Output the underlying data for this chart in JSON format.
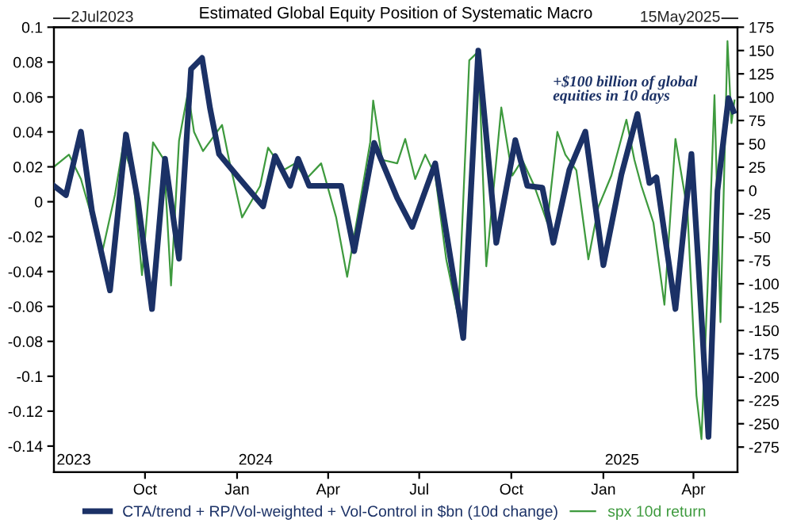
{
  "chart_data": {
    "type": "line",
    "title": "Estimated Global Equity Position of Systematic Macro",
    "xlim": [
      "2023-07-02",
      "2025-05-15"
    ],
    "xticks": [
      {
        "value": "2023-10-01",
        "label": "Oct"
      },
      {
        "value": "2024-01-01",
        "label": "Jan"
      },
      {
        "value": "2024-04-01",
        "label": "Apr"
      },
      {
        "value": "2024-07-01",
        "label": "Jul"
      },
      {
        "value": "2024-10-01",
        "label": "Oct"
      },
      {
        "value": "2025-01-01",
        "label": "Jan"
      },
      {
        "value": "2025-04-01",
        "label": "Apr"
      }
    ],
    "ylim": [
      -0.155,
      0.1
    ],
    "yticks": [
      0.1,
      0.08,
      0.06,
      0.04,
      0.02,
      0,
      -0.02,
      -0.04,
      -0.06,
      -0.08,
      -0.1,
      -0.12,
      -0.14
    ],
    "y2lim": [
      -302,
      175
    ],
    "y2ticks": [
      175,
      150,
      125,
      100,
      75,
      50,
      25,
      0,
      -25,
      -50,
      -75,
      -100,
      -125,
      -150,
      -175,
      -200,
      -225,
      -250,
      -275
    ],
    "legend": "bottom",
    "grid": false,
    "annotations": [
      "2Jul2023",
      "15May2025",
      "+$100 billion of global equities in 10 days",
      "2023",
      "2024",
      "2025"
    ],
    "series": [
      {
        "name": "spx 10d return",
        "color": "#3e9a3e",
        "x": [
          "2023-07-02",
          "2023-07-17",
          "2023-07-29",
          "2023-08-12",
          "2023-08-20",
          "2023-09-01",
          "2023-09-09",
          "2023-09-19",
          "2023-09-28",
          "2023-10-09",
          "2023-10-20",
          "2023-10-27",
          "2023-11-04",
          "2023-11-13",
          "2023-11-19",
          "2023-11-28",
          "2023-12-17",
          "2023-12-24",
          "2024-01-06",
          "2024-01-24",
          "2024-02-01",
          "2024-02-16",
          "2024-02-28",
          "2024-03-10",
          "2024-03-25",
          "2024-04-09",
          "2024-04-20",
          "2024-05-02",
          "2024-05-13",
          "2024-05-16",
          "2024-05-25",
          "2024-06-09",
          "2024-06-17",
          "2024-06-27",
          "2024-07-07",
          "2024-07-17",
          "2024-07-28",
          "2024-08-09",
          "2024-08-20",
          "2024-08-29",
          "2024-09-06",
          "2024-09-21",
          "2024-10-02",
          "2024-10-12",
          "2024-10-24",
          "2024-11-06",
          "2024-11-16",
          "2024-11-24",
          "2024-12-05",
          "2024-12-17",
          "2024-12-27",
          "2025-01-09",
          "2025-01-24",
          "2025-02-01",
          "2025-02-08",
          "2025-02-20",
          "2025-03-03",
          "2025-03-14",
          "2025-03-26",
          "2025-04-04",
          "2025-04-09",
          "2025-04-15",
          "2025-04-22",
          "2025-04-28",
          "2025-05-05",
          "2025-05-09",
          "2025-05-12"
        ],
        "values": [
          0.02,
          0.027,
          0.013,
          -0.015,
          -0.027,
          0.004,
          0.032,
          0.015,
          -0.042,
          0.034,
          0.024,
          -0.048,
          0.035,
          0.063,
          0.04,
          0.029,
          0.044,
          0.024,
          -0.009,
          0.009,
          0.031,
          0.018,
          0.022,
          0.013,
          0.022,
          -0.009,
          -0.043,
          -0.003,
          0.034,
          0.058,
          0.024,
          0.022,
          0.036,
          0.013,
          0.027,
          0.015,
          -0.033,
          -0.066,
          0.081,
          0.086,
          -0.037,
          0.054,
          0.015,
          0.024,
          0.009,
          -0.012,
          0.04,
          0.027,
          0.018,
          -0.033,
          -0.003,
          0.015,
          0.047,
          0.024,
          0.009,
          -0.012,
          -0.059,
          0.036,
          -0.005,
          -0.111,
          -0.136,
          -0.051,
          0.061,
          -0.069,
          0.092,
          0.045,
          0.058
        ]
      },
      {
        "name": "CTA/trend + RP/Vol-weighted + Vol-Control in $bn (10d change)",
        "color": "#1b3166",
        "axis": "y2",
        "x": [
          "2023-07-02",
          "2023-07-14",
          "2023-07-29",
          "2023-08-09",
          "2023-08-27",
          "2023-09-12",
          "2023-09-24",
          "2023-10-08",
          "2023-10-21",
          "2023-11-04",
          "2023-11-16",
          "2023-11-27",
          "2023-12-05",
          "2023-12-14",
          "2024-01-04",
          "2024-01-27",
          "2024-02-08",
          "2024-02-23",
          "2024-03-02",
          "2024-03-13",
          "2024-04-14",
          "2024-04-27",
          "2024-05-17",
          "2024-06-09",
          "2024-06-24",
          "2024-07-17",
          "2024-08-14",
          "2024-08-29",
          "2024-09-16",
          "2024-10-05",
          "2024-10-17",
          "2024-11-01",
          "2024-11-12",
          "2024-11-28",
          "2024-12-14",
          "2025-01-01",
          "2025-01-19",
          "2025-02-04",
          "2025-02-16",
          "2025-02-23",
          "2025-03-14",
          "2025-03-30",
          "2025-04-06",
          "2025-04-16",
          "2025-04-25",
          "2025-05-06",
          "2025-05-11"
        ],
        "values": [
          5,
          -5,
          63,
          -22,
          -107,
          60,
          -12,
          -127,
          34,
          -73,
          130,
          142,
          88,
          39,
          12,
          -17,
          37,
          5,
          34,
          5,
          5,
          -65,
          51,
          -8,
          -39,
          29,
          -158,
          150,
          -56,
          54,
          5,
          3,
          -56,
          22,
          63,
          -80,
          17,
          82,
          8,
          14,
          -127,
          39,
          -80,
          -264,
          0,
          99,
          85
        ]
      }
    ]
  }
}
